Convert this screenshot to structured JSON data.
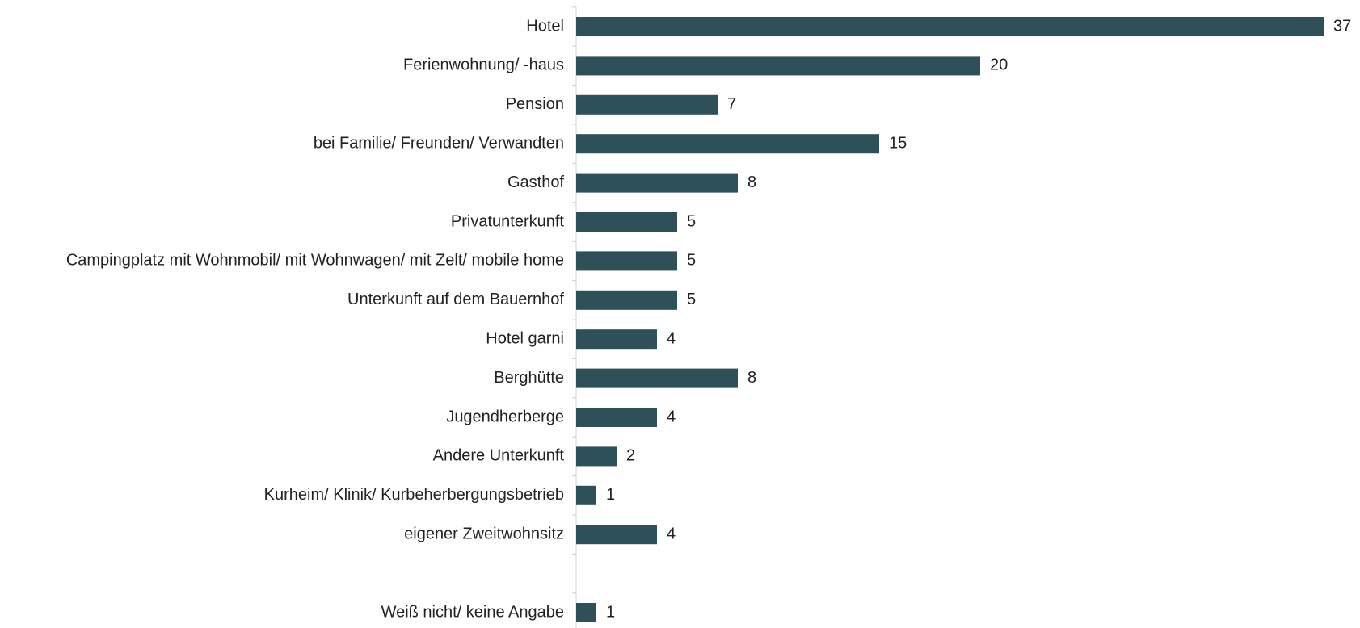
{
  "chart_data": {
    "type": "bar",
    "orientation": "horizontal",
    "color": "#2d5059",
    "categories": [
      "Hotel",
      "Ferienwohnung/ -haus",
      "Pension",
      "bei Familie/ Freunden/ Verwandten",
      "Gasthof",
      "Privatunterkunft",
      "Campingplatz mit Wohnmobil/ mit Wohnwagen/ mit Zelt/ mobile home",
      "Unterkunft auf dem Bauernhof",
      "Hotel garni",
      "Berghütte",
      "Jugendherberge",
      "Andere Unterkunft",
      "Kurheim/ Klinik/ Kurbeherbergungsbetrieb",
      "eigener Zweitwohnsitz",
      null,
      "Weiß nicht/ keine Angabe"
    ],
    "values": [
      37,
      20,
      7,
      15,
      8,
      5,
      5,
      5,
      4,
      8,
      4,
      2,
      1,
      4,
      null,
      1
    ]
  }
}
